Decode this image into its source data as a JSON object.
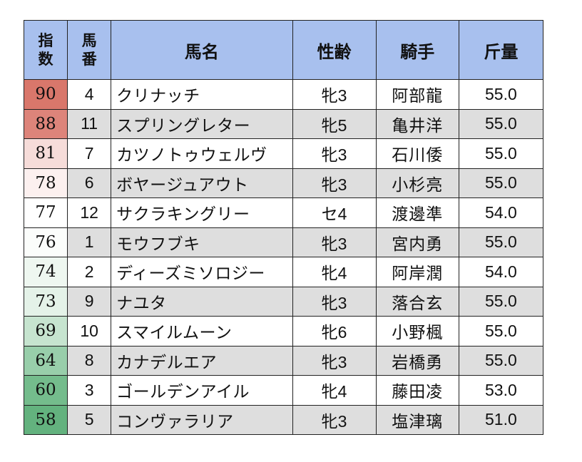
{
  "table": {
    "headers": {
      "index_line1": "指",
      "index_line2": "数",
      "number_line1": "馬",
      "number_line2": "番",
      "name": "馬名",
      "sexage": "性齢",
      "jockey": "騎手",
      "weight": "斤量"
    },
    "rows": [
      {
        "index": "90",
        "number": "4",
        "name": "クリナッチ",
        "sexage": "牝3",
        "jockey": "阿部龍",
        "weight": "55.0",
        "index_color": "#d9776b"
      },
      {
        "index": "88",
        "number": "11",
        "name": "スプリングレター",
        "sexage": "牝5",
        "jockey": "亀井洋",
        "weight": "55.0",
        "index_color": "#dd847a"
      },
      {
        "index": "81",
        "number": "7",
        "name": "カツノトゥウェルヴ",
        "sexage": "牝3",
        "jockey": "石川倭",
        "weight": "55.0",
        "index_color": "#f6dcd9"
      },
      {
        "index": "78",
        "number": "6",
        "name": "ボヤージュアウト",
        "sexage": "牝3",
        "jockey": "小杉亮",
        "weight": "55.0",
        "index_color": "#fcf0ef"
      },
      {
        "index": "77",
        "number": "12",
        "name": "サクラキングリー",
        "sexage": "セ4",
        "jockey": "渡邊準",
        "weight": "54.0",
        "index_color": "#ffffff"
      },
      {
        "index": "76",
        "number": "1",
        "name": "モウフブキ",
        "sexage": "牝3",
        "jockey": "宮内勇",
        "weight": "55.0",
        "index_color": "#fbfdfb"
      },
      {
        "index": "74",
        "number": "2",
        "name": "ディーズミソロジー",
        "sexage": "牝4",
        "jockey": "阿岸潤",
        "weight": "54.0",
        "index_color": "#eef7f0"
      },
      {
        "index": "73",
        "number": "9",
        "name": "ナユタ",
        "sexage": "牝3",
        "jockey": "落合玄",
        "weight": "55.0",
        "index_color": "#e4f2e8"
      },
      {
        "index": "69",
        "number": "10",
        "name": "スマイルムーン",
        "sexage": "牝6",
        "jockey": "小野楓",
        "weight": "55.0",
        "index_color": "#c6e4cf"
      },
      {
        "index": "64",
        "number": "8",
        "name": "カナデルエア",
        "sexage": "牝3",
        "jockey": "岩橋勇",
        "weight": "55.0",
        "index_color": "#98ceaa"
      },
      {
        "index": "60",
        "number": "3",
        "name": "ゴールデンアイル",
        "sexage": "牝4",
        "jockey": "藤田凌",
        "weight": "53.0",
        "index_color": "#74bc8c"
      },
      {
        "index": "58",
        "number": "5",
        "name": "コンヴァラリア",
        "sexage": "牝3",
        "jockey": "塩津璃",
        "weight": "51.0",
        "index_color": "#63b27e"
      }
    ]
  },
  "colors": {
    "header_bg": "#a8c0ee",
    "zebra_gray": "#dedede",
    "border": "#222222"
  }
}
